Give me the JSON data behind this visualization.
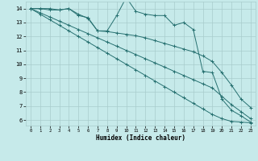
{
  "xlabel": "Humidex (Indice chaleur)",
  "bg_color": "#c6eaea",
  "grid_color": "#a8cccc",
  "line_color": "#267070",
  "xlim": [
    -0.5,
    23.5
  ],
  "ylim": [
    5.6,
    14.5
  ],
  "yticks": [
    6,
    7,
    8,
    9,
    10,
    11,
    12,
    13,
    14
  ],
  "xticks": [
    0,
    1,
    2,
    3,
    4,
    5,
    6,
    7,
    8,
    9,
    10,
    11,
    12,
    13,
    14,
    15,
    16,
    17,
    18,
    19,
    20,
    21,
    22,
    23
  ],
  "series": [
    {
      "x": [
        0,
        1,
        2,
        3,
        4,
        5,
        6,
        7,
        8,
        9,
        10,
        11,
        12,
        13,
        14,
        15,
        16,
        17,
        18,
        19,
        20,
        21,
        22,
        23
      ],
      "y": [
        14.0,
        14.0,
        14.0,
        13.9,
        14.0,
        13.5,
        13.35,
        12.4,
        12.4,
        13.5,
        14.8,
        13.8,
        13.6,
        13.5,
        13.5,
        12.8,
        13.0,
        12.5,
        9.5,
        9.4,
        7.5,
        6.7,
        6.3,
        5.85
      ]
    },
    {
      "x": [
        0,
        1,
        2,
        3,
        4,
        5,
        6,
        7,
        8,
        9,
        10,
        11,
        12,
        13,
        14,
        15,
        16,
        17,
        18,
        19,
        20,
        21,
        22,
        23
      ],
      "y": [
        14.0,
        14.0,
        13.9,
        13.9,
        14.0,
        13.6,
        13.3,
        12.4,
        12.35,
        12.25,
        12.15,
        12.05,
        11.9,
        11.7,
        11.5,
        11.3,
        11.1,
        10.9,
        10.6,
        10.2,
        9.4,
        8.5,
        7.5,
        6.9
      ]
    },
    {
      "x": [
        0,
        1,
        2,
        3,
        4,
        5,
        6,
        7,
        8,
        9,
        10,
        11,
        12,
        13,
        14,
        15,
        16,
        17,
        18,
        19,
        20,
        21,
        22,
        23
      ],
      "y": [
        14.0,
        13.7,
        13.4,
        13.1,
        12.8,
        12.5,
        12.2,
        11.9,
        11.6,
        11.3,
        11.0,
        10.7,
        10.4,
        10.1,
        9.8,
        9.5,
        9.2,
        8.9,
        8.6,
        8.3,
        7.7,
        7.1,
        6.6,
        6.1
      ]
    },
    {
      "x": [
        0,
        1,
        2,
        3,
        4,
        5,
        6,
        7,
        8,
        9,
        10,
        11,
        12,
        13,
        14,
        15,
        16,
        17,
        18,
        19,
        20,
        21,
        22,
        23
      ],
      "y": [
        14.0,
        13.6,
        13.2,
        12.8,
        12.4,
        12.0,
        11.6,
        11.2,
        10.8,
        10.4,
        10.0,
        9.6,
        9.2,
        8.8,
        8.4,
        8.0,
        7.6,
        7.2,
        6.8,
        6.4,
        6.1,
        5.9,
        5.85,
        5.8
      ]
    }
  ]
}
